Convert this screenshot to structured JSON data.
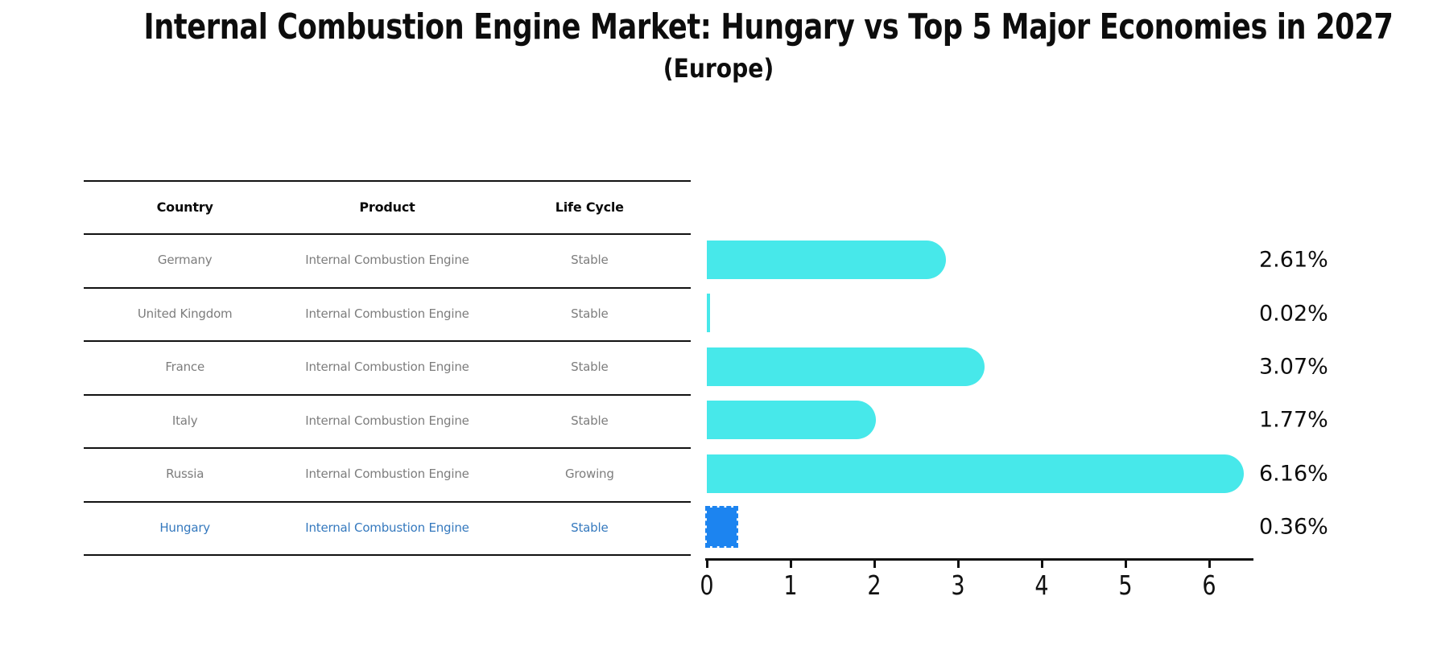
{
  "title": "Internal Combustion Engine Market: Hungary vs Top 5 Major Economies in 2027",
  "subtitle": "(Europe)",
  "table": {
    "headers": [
      "Country",
      "Product",
      "Life Cycle"
    ],
    "rows": [
      {
        "country": "Germany",
        "product": "Internal Combustion Engine",
        "life_cycle": "Stable",
        "highlighted": false
      },
      {
        "country": "United Kingdom",
        "product": "Internal Combustion Engine",
        "life_cycle": "Stable",
        "highlighted": false
      },
      {
        "country": "France",
        "product": "Internal Combustion Engine",
        "life_cycle": "Stable",
        "highlighted": false
      },
      {
        "country": "Italy",
        "product": "Internal Combustion Engine",
        "life_cycle": "Stable",
        "highlighted": false
      },
      {
        "country": "Russia",
        "product": "Internal Combustion Engine",
        "life_cycle": "Growing",
        "highlighted": false
      },
      {
        "country": "Hungary",
        "product": "Internal Combustion Engine",
        "life_cycle": "Stable",
        "highlighted": true
      }
    ]
  },
  "chart_data": {
    "type": "bar",
    "orientation": "horizontal",
    "categories": [
      "Germany",
      "United Kingdom",
      "France",
      "Italy",
      "Russia",
      "Hungary"
    ],
    "values": [
      2.61,
      0.02,
      3.07,
      1.77,
      6.16,
      0.36
    ],
    "value_labels": [
      "2.61%",
      "0.02%",
      "3.07%",
      "1.77%",
      "6.16%",
      "0.36%"
    ],
    "x_ticks": [
      "0",
      "1",
      "2",
      "3",
      "4",
      "5",
      "6"
    ],
    "xlim": [
      0,
      6.5
    ],
    "grid": false,
    "legend": false,
    "bar_color": "#47e8ea",
    "highlight_bar_color": "#1c84f0",
    "highlight_index": 5,
    "highlight_style": "dashed-outline"
  },
  "colors": {
    "title": "#0d0d0d",
    "table_text": "#7d7d7d",
    "table_header": "#0a0a0a",
    "highlight_text": "#3579be",
    "axis": "#111111",
    "value_label": "#0d0d0d"
  }
}
